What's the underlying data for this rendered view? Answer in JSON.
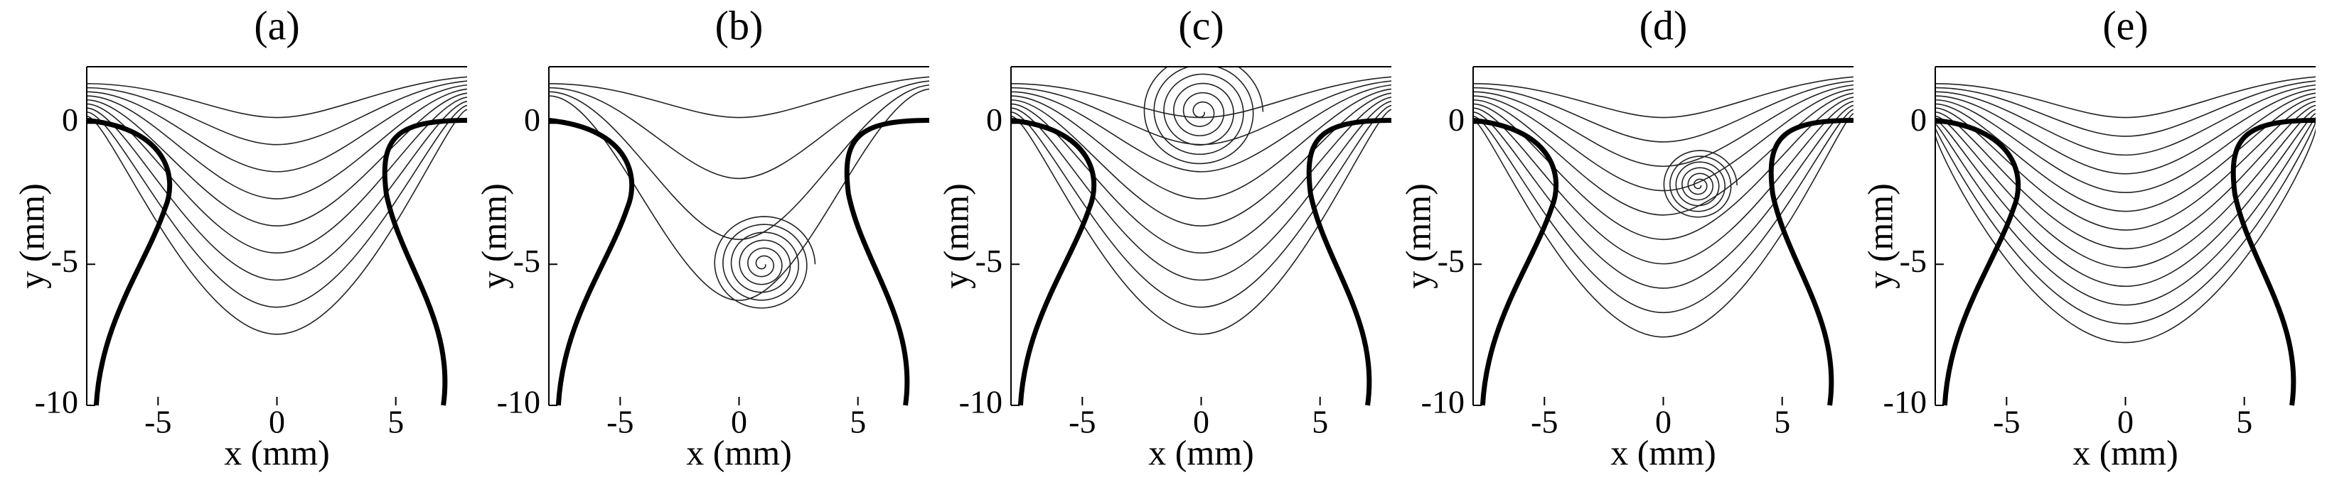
{
  "chart_data": [
    {
      "type": "streamline",
      "title": "(a)",
      "xlabel": "x (mm)",
      "ylabel": "y (mm)",
      "xlim": [
        -8,
        8
      ],
      "ylim": [
        -10,
        2
      ],
      "xticks": [
        -5,
        0,
        5
      ],
      "yticks": [
        -10,
        -5,
        0
      ]
    },
    {
      "type": "streamline",
      "title": "(b)",
      "xlabel": "x (mm)",
      "ylabel": "y (mm)",
      "xlim": [
        -8,
        8
      ],
      "ylim": [
        -10,
        2
      ],
      "xticks": [
        -5,
        0,
        5
      ],
      "yticks": [
        -10,
        -5,
        0
      ]
    },
    {
      "type": "streamline",
      "title": "(c)",
      "xlabel": "x (mm)",
      "ylabel": "y (mm)",
      "xlim": [
        -8,
        8
      ],
      "ylim": [
        -10,
        2
      ],
      "xticks": [
        -5,
        0,
        5
      ],
      "yticks": [
        -10,
        -5,
        0
      ]
    },
    {
      "type": "streamline",
      "title": "(d)",
      "xlabel": "x (mm)",
      "ylabel": "y (mm)",
      "xlim": [
        -8,
        8
      ],
      "ylim": [
        -10,
        2
      ],
      "xticks": [
        -5,
        0,
        5
      ],
      "yticks": [
        -10,
        -5,
        0
      ]
    },
    {
      "type": "streamline",
      "title": "(e)",
      "xlabel": "x (mm)",
      "ylabel": "y (mm)",
      "xlim": [
        -8,
        8
      ],
      "ylim": [
        -10,
        2
      ],
      "xticks": [
        -5,
        0,
        5
      ],
      "yticks": [
        -10,
        -5,
        0
      ]
    }
  ]
}
